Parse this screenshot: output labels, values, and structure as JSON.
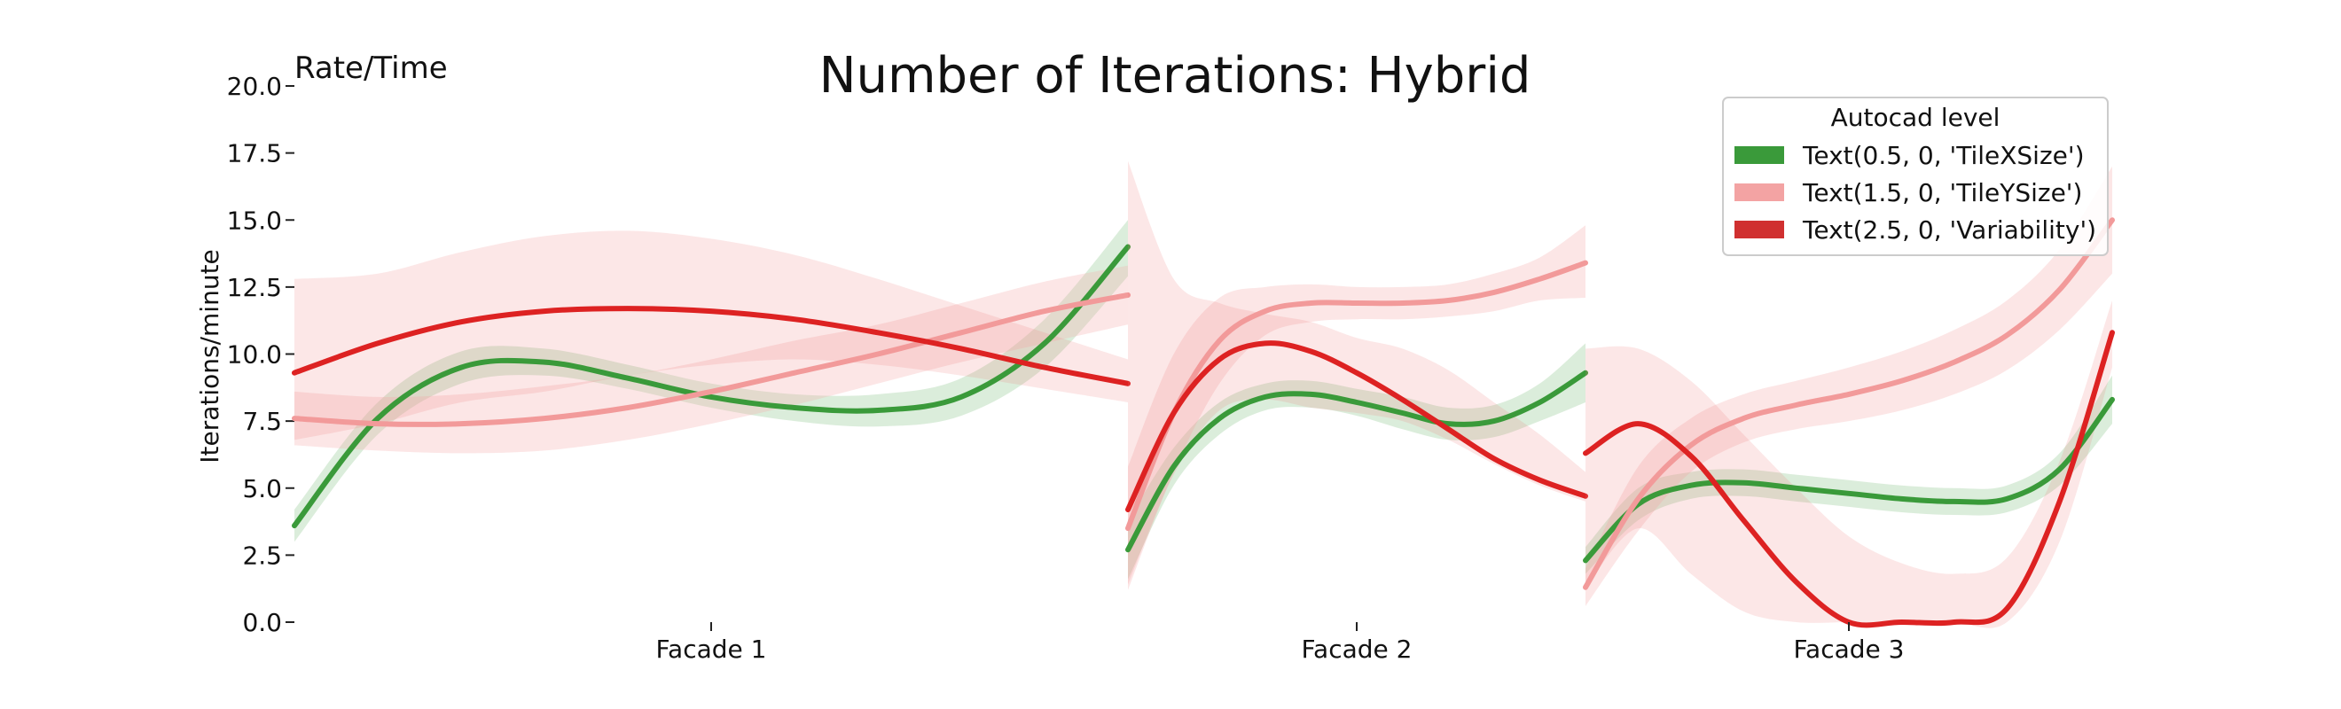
{
  "chart_data": {
    "type": "line",
    "title": "Number of Iterations: Hybrid",
    "corner_label": "Rate/Time",
    "ylabel": "Iterations/minute",
    "xlabel": "",
    "ylim": [
      0,
      20
    ],
    "yticks": [
      "0.0",
      "2.5",
      "5.0",
      "7.5",
      "10.0",
      "12.5",
      "15.0",
      "17.5",
      "20.0"
    ],
    "ytick_values": [
      0,
      2.5,
      5,
      7.5,
      10,
      12.5,
      15,
      17.5,
      20
    ],
    "grid": false,
    "legend": {
      "title": "Autocad level",
      "position": "top-right",
      "entries": [
        {
          "label": "Text(0.5, 0, 'TileXSize')",
          "color": "#3a9a3a"
        },
        {
          "label": "Text(1.5, 0, 'TileYSize')",
          "color": "#f3a3a3"
        },
        {
          "label": "Text(2.5, 0, 'Variability')",
          "color": "#d03030"
        }
      ]
    },
    "panels": [
      {
        "name": "Facade 1",
        "x": [
          0,
          0.1,
          0.2,
          0.3,
          0.4,
          0.5,
          0.6,
          0.7,
          0.8,
          0.9,
          1.0
        ],
        "series": [
          {
            "name": "Text(0.5, 0, 'TileXSize')",
            "color": "#3a9a3a",
            "values": [
              3.6,
              7.6,
              9.5,
              9.7,
              9.1,
              8.4,
              8.0,
              7.9,
              8.4,
              10.4,
              14.0
            ],
            "lower": [
              3.0,
              7.0,
              8.9,
              9.2,
              8.7,
              8.0,
              7.5,
              7.3,
              7.7,
              9.5,
              12.9
            ],
            "upper": [
              4.2,
              8.2,
              10.1,
              10.2,
              9.6,
              8.9,
              8.5,
              8.5,
              9.1,
              11.3,
              15.0
            ]
          },
          {
            "name": "Text(1.5, 0, 'TileYSize')",
            "color": "#f3a3a3",
            "values": [
              7.6,
              7.4,
              7.4,
              7.6,
              8.0,
              8.6,
              9.3,
              10.0,
              10.8,
              11.6,
              12.2
            ],
            "lower": [
              6.6,
              6.4,
              6.3,
              6.4,
              6.8,
              7.4,
              8.1,
              8.9,
              9.7,
              10.4,
              11.1
            ],
            "upper": [
              8.6,
              8.4,
              8.5,
              8.8,
              9.2,
              9.8,
              10.5,
              11.1,
              11.9,
              12.7,
              13.3
            ]
          },
          {
            "name": "Text(2.5, 0, 'Variability')",
            "color": "#d03030",
            "values": [
              9.3,
              10.4,
              11.2,
              11.6,
              11.7,
              11.6,
              11.3,
              10.8,
              10.2,
              9.5,
              8.9
            ],
            "lower": [
              6.8,
              7.4,
              8.2,
              8.6,
              9.2,
              9.6,
              9.8,
              9.6,
              9.2,
              8.7,
              8.2
            ],
            "upper": [
              12.8,
              13.0,
              13.8,
              14.4,
              14.6,
              14.3,
              13.7,
              12.8,
              11.8,
              10.8,
              9.8
            ]
          }
        ]
      },
      {
        "name": "Facade 2",
        "x": [
          0,
          0.1,
          0.2,
          0.3,
          0.4,
          0.5,
          0.6,
          0.7,
          0.8,
          0.9,
          1.0
        ],
        "series": [
          {
            "name": "Text(0.5, 0, 'TileXSize')",
            "color": "#3a9a3a",
            "values": [
              2.7,
              5.8,
              7.6,
              8.4,
              8.5,
              8.2,
              7.8,
              7.4,
              7.5,
              8.2,
              9.3
            ],
            "lower": [
              1.6,
              5.1,
              7.0,
              7.9,
              8.0,
              7.7,
              7.2,
              6.8,
              6.9,
              7.5,
              8.2
            ],
            "upper": [
              3.8,
              6.5,
              8.2,
              8.9,
              9.0,
              8.7,
              8.4,
              8.0,
              8.1,
              8.9,
              10.4
            ]
          },
          {
            "name": "Text(1.5, 0, 'TileYSize')",
            "color": "#f3a3a3",
            "values": [
              3.5,
              7.8,
              10.5,
              11.6,
              11.9,
              11.9,
              11.9,
              12.0,
              12.3,
              12.8,
              13.4
            ],
            "lower": [
              1.2,
              5.6,
              8.9,
              10.7,
              11.2,
              11.3,
              11.3,
              11.4,
              11.6,
              12.0,
              12.1
            ],
            "upper": [
              5.8,
              10.0,
              12.1,
              12.5,
              12.6,
              12.5,
              12.5,
              12.6,
              13.0,
              13.6,
              14.8
            ]
          },
          {
            "name": "Text(2.5, 0, 'Variability')",
            "color": "#d03030",
            "values": [
              4.2,
              7.8,
              9.8,
              10.4,
              10.1,
              9.3,
              8.3,
              7.2,
              6.1,
              5.3,
              4.7
            ],
            "lower": [
              1.4,
              5.5,
              7.9,
              8.3,
              8.0,
              7.8,
              7.5,
              6.8,
              5.9,
              5.1,
              4.5
            ],
            "upper": [
              17.2,
              12.8,
              11.9,
              11.5,
              11.2,
              10.6,
              10.2,
              9.4,
              8.2,
              7.0,
              5.6
            ]
          }
        ]
      },
      {
        "name": "Facade 3",
        "x": [
          0,
          0.1,
          0.2,
          0.3,
          0.4,
          0.5,
          0.6,
          0.7,
          0.8,
          0.9,
          1.0
        ],
        "series": [
          {
            "name": "Text(0.5, 0, 'TileXSize')",
            "color": "#3a9a3a",
            "values": [
              2.3,
              4.4,
              5.1,
              5.2,
              5.0,
              4.8,
              4.6,
              4.5,
              4.6,
              5.7,
              8.3
            ],
            "lower": [
              1.8,
              3.8,
              4.6,
              4.7,
              4.5,
              4.3,
              4.1,
              4.0,
              4.1,
              5.1,
              7.4
            ],
            "upper": [
              2.8,
              5.0,
              5.6,
              5.7,
              5.5,
              5.3,
              5.1,
              5.0,
              5.1,
              6.3,
              9.2
            ]
          },
          {
            "name": "Text(1.5, 0, 'TileYSize')",
            "color": "#f3a3a3",
            "values": [
              1.3,
              4.6,
              6.6,
              7.6,
              8.1,
              8.5,
              9.0,
              9.7,
              10.7,
              12.4,
              15.0
            ],
            "lower": [
              0.6,
              3.4,
              5.6,
              6.7,
              7.2,
              7.5,
              7.9,
              8.5,
              9.4,
              10.9,
              13.0
            ],
            "upper": [
              2.0,
              5.8,
              7.6,
              8.5,
              9.0,
              9.5,
              10.1,
              10.9,
              12.0,
              13.9,
              17.0
            ]
          },
          {
            "name": "Text(2.5, 0, 'Variability')",
            "color": "#d03030",
            "values": [
              6.3,
              7.4,
              6.2,
              3.8,
              1.5,
              0.0,
              -0.3,
              -0.1,
              0.5,
              4.5,
              10.8
            ],
            "lower": [
              1.3,
              3.5,
              1.8,
              0.4,
              0.0,
              0.0,
              0.0,
              0.0,
              0.0,
              3.0,
              9.5
            ],
            "upper": [
              10.2,
              10.2,
              9.0,
              7.0,
              5.0,
              3.2,
              2.2,
              1.8,
              2.4,
              6.0,
              12.0
            ]
          }
        ]
      }
    ]
  }
}
